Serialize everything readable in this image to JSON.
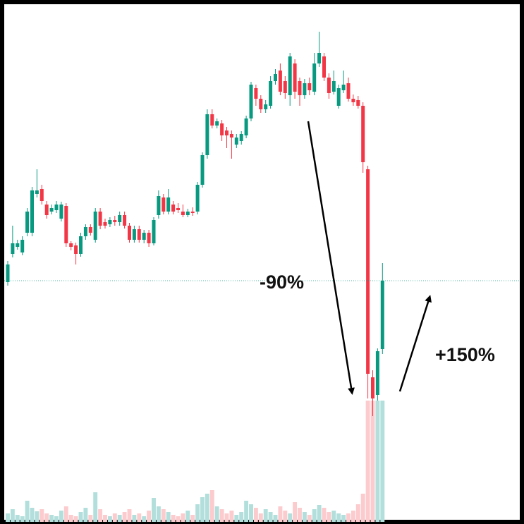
{
  "chart_data": {
    "type": "candlestick",
    "up_color": "#089981",
    "down_color": "#f23645",
    "volume_up_color": "#b2dfdb",
    "volume_down_color": "#fccbcd",
    "ylim": [
      0,
      730
    ],
    "y2lim": [
      0,
      730
    ],
    "open": [
      340,
      380,
      390,
      382,
      410,
      410,
      465,
      472,
      450,
      440,
      442,
      430,
      448,
      395,
      392,
      380,
      405,
      418,
      400,
      440,
      425,
      422,
      428,
      425,
      435,
      420,
      400,
      415,
      400,
      410,
      395,
      435,
      460,
      440,
      450,
      445,
      440,
      435,
      440,
      440,
      478,
      520,
      578,
      562,
      565,
      555,
      550,
      535,
      540,
      548,
      572,
      615,
      600,
      585,
      590,
      625,
      640,
      625,
      605,
      650,
      625,
      605,
      622,
      610,
      650,
      660,
      630,
      610,
      590,
      612,
      622,
      600,
      598,
      590,
      500,
      205,
      180,
      245
    ],
    "high": [
      370,
      420,
      400,
      405,
      445,
      475,
      500,
      478,
      455,
      450,
      455,
      454,
      452,
      398,
      396,
      410,
      422,
      422,
      445,
      445,
      430,
      432,
      434,
      440,
      440,
      424,
      420,
      420,
      414,
      414,
      432,
      470,
      465,
      472,
      455,
      452,
      450,
      444,
      446,
      482,
      524,
      585,
      585,
      572,
      570,
      560,
      555,
      550,
      554,
      576,
      624,
      620,
      605,
      598,
      632,
      642,
      650,
      632,
      665,
      656,
      630,
      628,
      630,
      665,
      695,
      665,
      636,
      640,
      620,
      640,
      630,
      606,
      604,
      595,
      505,
      215,
      246,
      367
    ],
    "low": [
      335,
      375,
      386,
      378,
      405,
      405,
      460,
      450,
      430,
      436,
      438,
      426,
      390,
      385,
      365,
      376,
      400,
      406,
      396,
      415,
      416,
      418,
      420,
      420,
      416,
      396,
      396,
      396,
      395,
      390,
      392,
      430,
      436,
      436,
      436,
      438,
      432,
      432,
      434,
      436,
      474,
      515,
      558,
      558,
      540,
      530,
      515,
      530,
      535,
      544,
      568,
      590,
      580,
      580,
      586,
      620,
      605,
      600,
      590,
      600,
      590,
      600,
      605,
      605,
      645,
      625,
      600,
      606,
      586,
      608,
      596,
      590,
      586,
      495,
      175,
      150,
      172,
      238
    ],
    "close": [
      365,
      395,
      395,
      400,
      440,
      470,
      470,
      455,
      435,
      445,
      450,
      450,
      395,
      390,
      380,
      405,
      418,
      410,
      440,
      420,
      420,
      428,
      425,
      435,
      420,
      400,
      415,
      400,
      410,
      395,
      428,
      462,
      440,
      460,
      440,
      442,
      435,
      440,
      438,
      478,
      520,
      578,
      562,
      568,
      548,
      548,
      545,
      545,
      550,
      572,
      620,
      600,
      585,
      592,
      625,
      635,
      610,
      608,
      660,
      610,
      605,
      622,
      612,
      650,
      665,
      630,
      608,
      625,
      615,
      620,
      600,
      595,
      590,
      510,
      210,
      175,
      242,
      342
    ],
    "volume": [
      12,
      18,
      10,
      8,
      30,
      20,
      15,
      18,
      12,
      10,
      8,
      16,
      22,
      10,
      8,
      14,
      20,
      10,
      42,
      18,
      10,
      8,
      12,
      10,
      14,
      18,
      10,
      12,
      8,
      16,
      34,
      22,
      18,
      14,
      10,
      8,
      12,
      16,
      10,
      25,
      35,
      40,
      45,
      22,
      18,
      12,
      16,
      10,
      14,
      30,
      25,
      20,
      12,
      18,
      14,
      10,
      22,
      16,
      12,
      28,
      20,
      14,
      10,
      18,
      24,
      20,
      14,
      16,
      12,
      10,
      12,
      16,
      25,
      40,
      172,
      172,
      172,
      172
    ],
    "annotations": [
      "-90%",
      "+150%"
    ]
  }
}
